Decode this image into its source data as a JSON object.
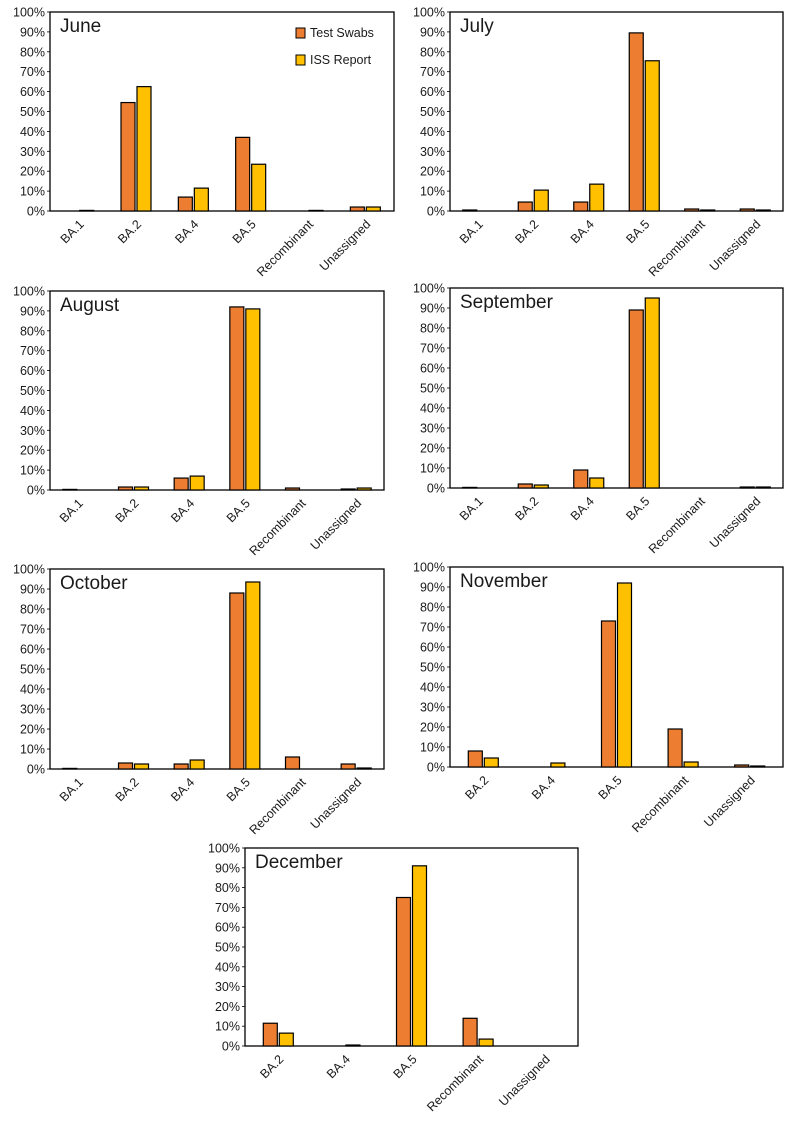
{
  "legend": {
    "series": [
      "Test Swabs",
      "ISS Report"
    ]
  },
  "colors": {
    "test_swabs": "#ED7D31",
    "iss_report": "#FFC000",
    "outline": "#000000"
  },
  "chart_data": [
    {
      "type": "bar",
      "title": "June",
      "categories": [
        "BA.1",
        "BA.2",
        "BA.4",
        "BA.5",
        "Recombinant",
        "Unassigned"
      ],
      "series": [
        {
          "name": "Test Swabs",
          "values": [
            0,
            54.5,
            7,
            37,
            0,
            2
          ]
        },
        {
          "name": "ISS Report",
          "values": [
            0.3,
            62.5,
            11.5,
            23.5,
            0.3,
            2
          ]
        }
      ],
      "yticks": [
        "0%",
        "10%",
        "20%",
        "30%",
        "40%",
        "50%",
        "60%",
        "70%",
        "80%",
        "90%",
        "100%"
      ],
      "ylim": [
        0,
        100
      ],
      "legend": "top-right",
      "xlabel": "",
      "ylabel": ""
    },
    {
      "type": "bar",
      "title": "July",
      "categories": [
        "BA.1",
        "BA.2",
        "BA.4",
        "BA.5",
        "Recombinant",
        "Unassigned"
      ],
      "series": [
        {
          "name": "Test Swabs",
          "values": [
            0.5,
            4.5,
            4.5,
            89.5,
            1,
            1
          ]
        },
        {
          "name": "ISS Report",
          "values": [
            0,
            10.5,
            13.5,
            75.5,
            0.5,
            0.5
          ]
        }
      ],
      "yticks": [
        "0%",
        "10%",
        "20%",
        "30%",
        "40%",
        "50%",
        "60%",
        "70%",
        "80%",
        "90%",
        "100%"
      ],
      "ylim": [
        0,
        100
      ],
      "xlabel": "",
      "ylabel": ""
    },
    {
      "type": "bar",
      "title": "August",
      "categories": [
        "BA.1",
        "BA.2",
        "BA.4",
        "BA.5",
        "Recombinant",
        "Unassigned"
      ],
      "series": [
        {
          "name": "Test Swabs",
          "values": [
            0.3,
            1.5,
            6,
            92,
            1,
            0.5
          ]
        },
        {
          "name": "ISS Report",
          "values": [
            0,
            1.5,
            7,
            91,
            0,
            1
          ]
        }
      ],
      "yticks": [
        "0%",
        "10%",
        "20%",
        "30%",
        "40%",
        "50%",
        "60%",
        "70%",
        "80%",
        "90%",
        "100%"
      ],
      "ylim": [
        0,
        100
      ],
      "xlabel": "",
      "ylabel": ""
    },
    {
      "type": "bar",
      "title": "September",
      "categories": [
        "BA.1",
        "BA.2",
        "BA.4",
        "BA.5",
        "Recombinant",
        "Unassigned"
      ],
      "series": [
        {
          "name": "Test Swabs",
          "values": [
            0.3,
            2,
            9,
            89,
            0,
            0.5
          ]
        },
        {
          "name": "ISS Report",
          "values": [
            0,
            1.5,
            5,
            95,
            0,
            0.5
          ]
        }
      ],
      "yticks": [
        "0%",
        "10%",
        "20%",
        "30%",
        "40%",
        "50%",
        "60%",
        "70%",
        "80%",
        "90%",
        "100%"
      ],
      "ylim": [
        0,
        100
      ],
      "xlabel": "",
      "ylabel": ""
    },
    {
      "type": "bar",
      "title": "October",
      "categories": [
        "BA.1",
        "BA.2",
        "BA.4",
        "BA.5",
        "Recombinant",
        "Unassigned"
      ],
      "series": [
        {
          "name": "Test Swabs",
          "values": [
            0.3,
            3,
            2.5,
            88,
            6,
            2.5
          ]
        },
        {
          "name": "ISS Report",
          "values": [
            0,
            2.5,
            4.5,
            93.5,
            0,
            0.5
          ]
        }
      ],
      "yticks": [
        "0%",
        "10%",
        "20%",
        "30%",
        "40%",
        "50%",
        "60%",
        "70%",
        "80%",
        "90%",
        "100%"
      ],
      "ylim": [
        0,
        100
      ],
      "xlabel": "",
      "ylabel": ""
    },
    {
      "type": "bar",
      "title": "November",
      "categories": [
        "BA.2",
        "BA.4",
        "BA.5",
        "Recombinant",
        "Unassigned"
      ],
      "series": [
        {
          "name": "Test Swabs",
          "values": [
            8,
            0,
            73,
            19,
            1
          ]
        },
        {
          "name": "ISS Report",
          "values": [
            4.5,
            2,
            92,
            2.5,
            0.5
          ]
        }
      ],
      "yticks": [
        "0%",
        "10%",
        "20%",
        "30%",
        "40%",
        "50%",
        "60%",
        "70%",
        "80%",
        "90%",
        "100%"
      ],
      "ylim": [
        0,
        100
      ],
      "xlabel": "",
      "ylabel": ""
    },
    {
      "type": "bar",
      "title": "December",
      "categories": [
        "BA.2",
        "BA.4",
        "BA.5",
        "Recombinant",
        "Unassigned"
      ],
      "series": [
        {
          "name": "Test Swabs",
          "values": [
            11.5,
            0,
            75,
            14,
            0
          ]
        },
        {
          "name": "ISS Report",
          "values": [
            6.5,
            0.5,
            91,
            3.5,
            0
          ]
        }
      ],
      "yticks": [
        "0%",
        "10%",
        "20%",
        "30%",
        "40%",
        "50%",
        "60%",
        "70%",
        "80%",
        "90%",
        "100%"
      ],
      "ylim": [
        0,
        100
      ],
      "xlabel": "",
      "ylabel": ""
    }
  ]
}
